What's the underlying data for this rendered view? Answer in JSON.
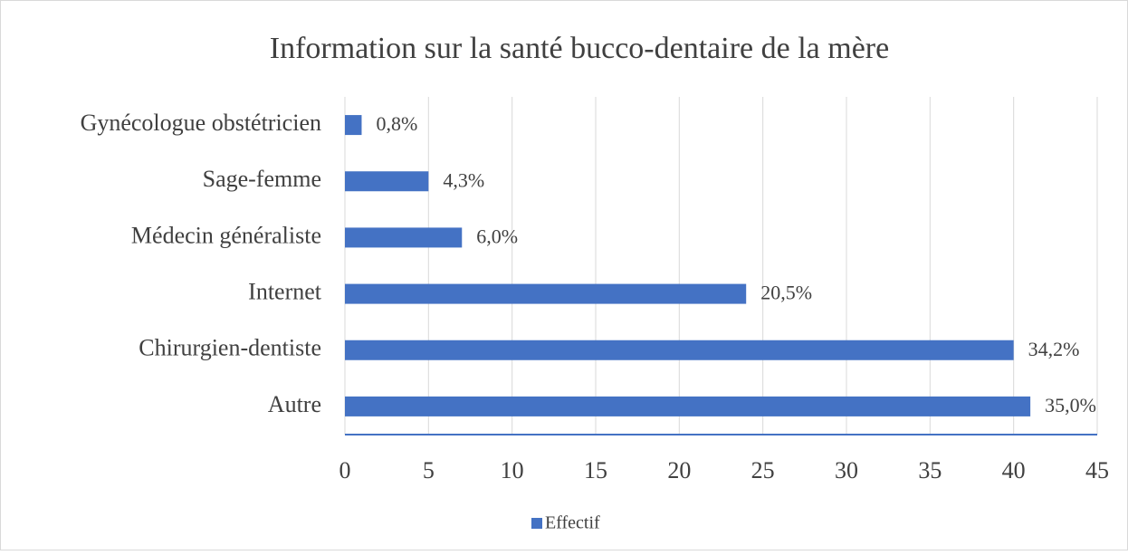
{
  "chart_data": {
    "type": "bar",
    "orientation": "horizontal",
    "title": "Information sur la santé bucco-dentaire de la mère",
    "categories": [
      "Gynécologue obstétricien",
      "Sage-femme",
      "Médecin généraliste",
      "Internet",
      "Chirurgien-dentiste",
      "Autre"
    ],
    "series": [
      {
        "name": "Effectif",
        "color": "#4472c4",
        "values": [
          1,
          5,
          7,
          24,
          40,
          41
        ],
        "value_labels": [
          "0,8%",
          "4,3%",
          "6,0%",
          "20,5%",
          "34,2%",
          "35,0%"
        ]
      }
    ],
    "xlim": [
      0,
      45
    ],
    "xticks": [
      0,
      5,
      10,
      15,
      20,
      25,
      30,
      35,
      40,
      45
    ],
    "grid": true,
    "legend": "bottom"
  }
}
